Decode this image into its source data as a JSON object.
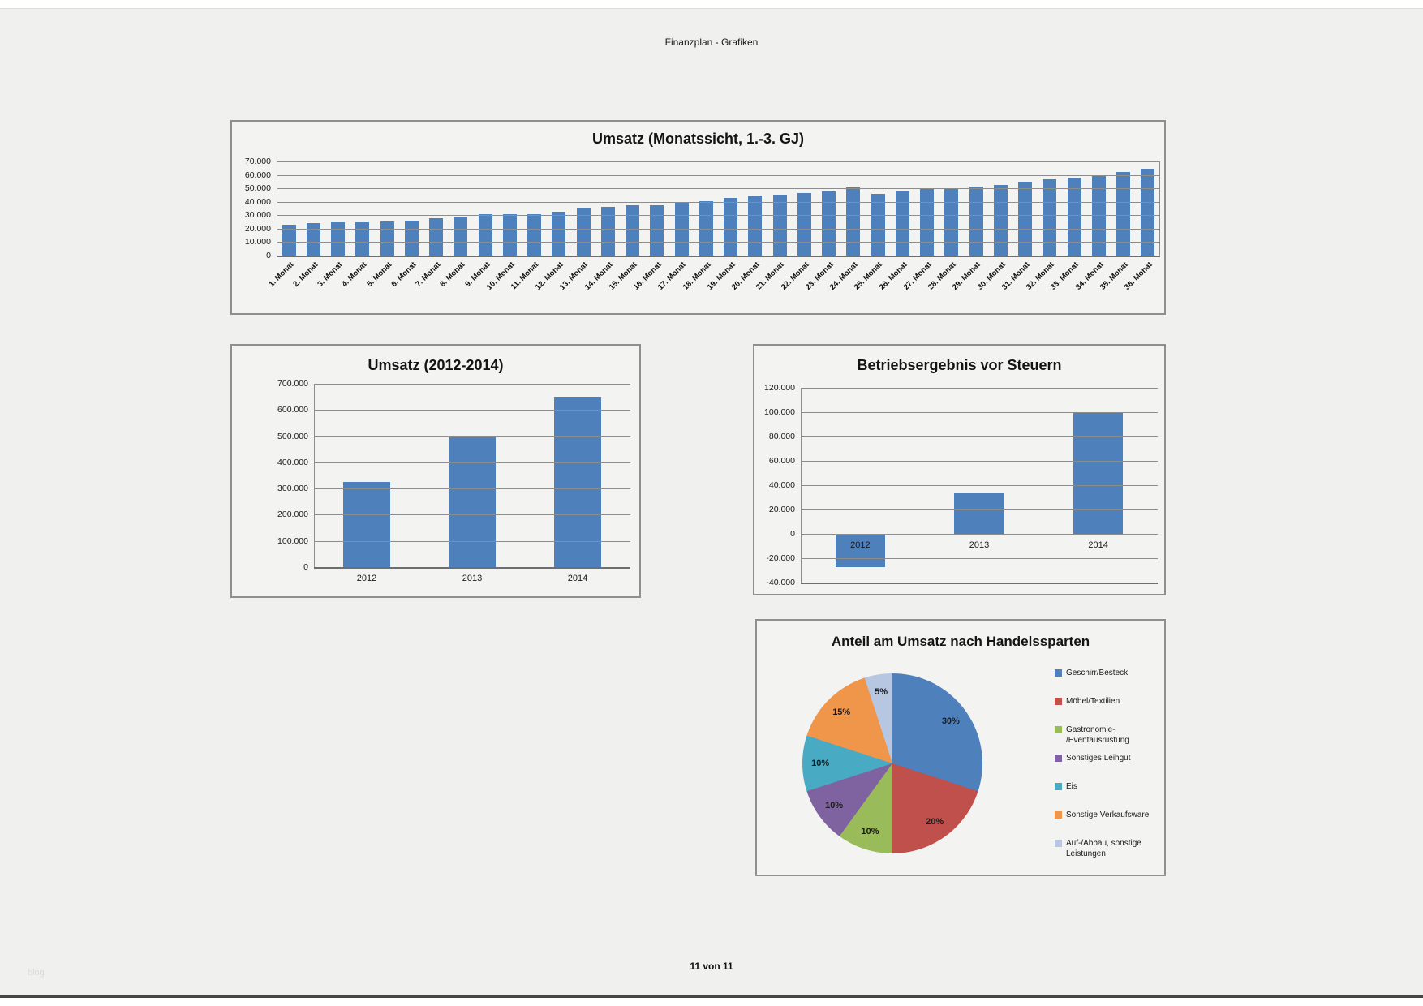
{
  "page": {
    "header_title": "Finanzplan - Grafiken",
    "footer_page": "11 von 11",
    "watermark": "blog"
  },
  "colors": {
    "bar_blue": "#4E80BC",
    "gridline": "#8D8D8D"
  },
  "chart_data": [
    {
      "id": "monthly",
      "type": "bar",
      "title": "Umsatz (Monatssicht, 1.-3. GJ)",
      "ylim": [
        0,
        70000
      ],
      "ytick_step": 10000,
      "ytick_labels": [
        "70.000",
        "60.000",
        "50.000",
        "40.000",
        "30.000",
        "20.000",
        "10.000",
        "0"
      ],
      "grid": true,
      "rotate_xlabels": true,
      "axis_right": true,
      "bar_color": "#4E80BC",
      "categories": [
        "1. Monat",
        "2. Monat",
        "3. Monat",
        "4. Monat",
        "5. Monat",
        "6. Monat",
        "7. Monat",
        "8. Monat",
        "9. Monat",
        "10. Monat",
        "11. Monat",
        "12. Monat",
        "13. Monat",
        "14. Monat",
        "15. Monat",
        "16. Monat",
        "17. Monat",
        "18. Monat",
        "19. Monat",
        "20. Monat",
        "21. Monat",
        "22. Monat",
        "23. Monat",
        "24. Monat",
        "25. Monat",
        "26. Monat",
        "27. Monat",
        "28. Monat",
        "29. Monat",
        "30. Monat",
        "31. Monat",
        "32. Monat",
        "33. Monat",
        "34. Monat",
        "35. Monat",
        "36. Monat"
      ],
      "values": [
        23000,
        24000,
        25000,
        25000,
        25500,
        26000,
        28000,
        29000,
        30500,
        30500,
        31000,
        32500,
        35500,
        36500,
        37500,
        37500,
        40000,
        40500,
        43000,
        44500,
        45500,
        46500,
        47500,
        50500,
        46000,
        47500,
        50000,
        50000,
        51000,
        52500,
        55000,
        57000,
        58000,
        60000,
        62000,
        64500
      ]
    },
    {
      "id": "yearly",
      "type": "bar",
      "title": "Umsatz (2012-2014)",
      "ylim": [
        0,
        700000
      ],
      "ytick_step": 100000,
      "ytick_labels": [
        "700.000",
        "600.000",
        "500.000",
        "400.000",
        "300.000",
        "200.000",
        "100.000",
        "0"
      ],
      "grid": true,
      "bar_color": "#4E80BC",
      "categories": [
        "2012",
        "2013",
        "2014"
      ],
      "values": [
        325000,
        500000,
        650000
      ]
    },
    {
      "id": "result",
      "type": "bar",
      "title": "Betriebsergebnis vor Steuern",
      "ylim": [
        -40000,
        120000
      ],
      "ytick_step": 20000,
      "ytick_labels": [
        "120.000",
        "100.000",
        "80.000",
        "60.000",
        "40.000",
        "20.000",
        "0",
        "-20.000",
        "-40.000"
      ],
      "grid": true,
      "xlabels_at_zero": true,
      "bar_color": "#4E80BC",
      "categories": [
        "2012",
        "2013",
        "2014"
      ],
      "values": [
        -27000,
        33500,
        100000
      ]
    },
    {
      "id": "shares",
      "type": "pie",
      "title": "Anteil am Umsatz nach Handelssparten",
      "legend_position": "right",
      "slices": [
        {
          "label": "Geschirr/Besteck",
          "pct": 30,
          "pct_label": "30%",
          "color": "#4E80BC"
        },
        {
          "label": "Möbel/Textilien",
          "pct": 20,
          "pct_label": "20%",
          "color": "#BF504C"
        },
        {
          "label": "Gastronomie-\n/Eventausrüstung",
          "pct": 10,
          "pct_label": "10%",
          "color": "#9ABB59"
        },
        {
          "label": "Sonstiges Leihgut",
          "pct": 10,
          "pct_label": "10%",
          "color": "#7F63A1"
        },
        {
          "label": "Eis",
          "pct": 10,
          "pct_label": "10%",
          "color": "#49AAC4"
        },
        {
          "label": "Sonstige Verkaufsware",
          "pct": 15,
          "pct_label": "15%",
          "color": "#F0964B"
        },
        {
          "label": "Auf-/Abbau, sonstige\nLeistungen",
          "pct": 5,
          "pct_label": "5%",
          "color": "#B7C7E2"
        }
      ]
    }
  ]
}
